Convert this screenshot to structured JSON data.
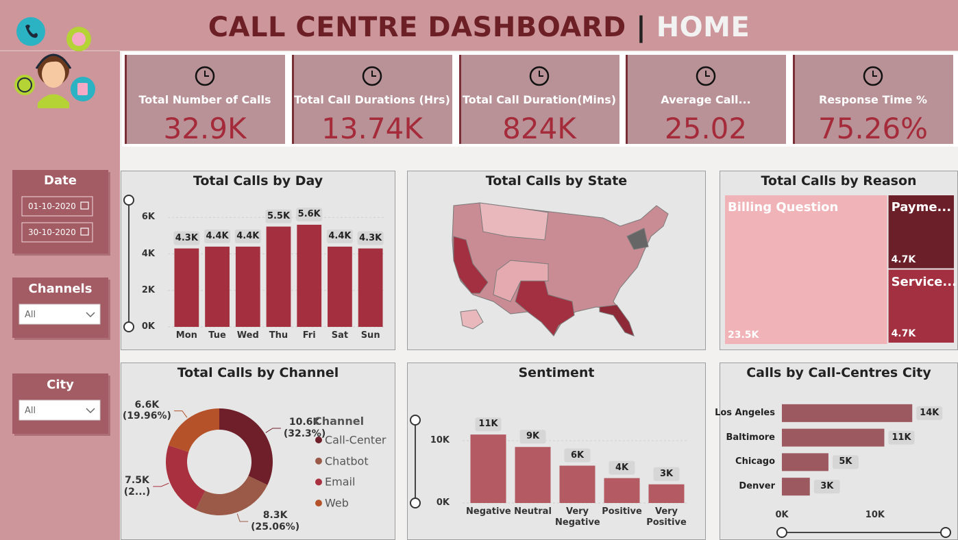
{
  "header": {
    "title": "CALL CENTRE DASHBOARD",
    "separator": "|",
    "page": "HOME"
  },
  "kpis": [
    {
      "label": "Total Number of Calls",
      "value": "32.9K"
    },
    {
      "label": "Total Call Durations (Hrs)",
      "value": "13.74K"
    },
    {
      "label": "Total Call Duration(Mins)",
      "value": "824K"
    },
    {
      "label": "Average Call...",
      "value": "25.02"
    },
    {
      "label": "Response Time %",
      "value": "75.26%"
    }
  ],
  "filters": {
    "date": {
      "title": "Date",
      "from": "01-10-2020",
      "to": "30-10-2020"
    },
    "channels": {
      "title": "Channels",
      "selected": "All"
    },
    "city": {
      "title": "City",
      "selected": "All"
    }
  },
  "chart_data": [
    {
      "type": "bar",
      "title": "Total Calls by Day",
      "categories": [
        "Mon",
        "Tue",
        "Wed",
        "Thu",
        "Fri",
        "Sat",
        "Sun"
      ],
      "values": [
        4300,
        4400,
        4400,
        5500,
        5600,
        4400,
        4300
      ],
      "value_labels": [
        "4.3K",
        "4.4K",
        "4.4K",
        "5.5K",
        "5.6K",
        "4.4K",
        "4.3K"
      ],
      "color": "#a4303f",
      "ylim": [
        0,
        6500
      ],
      "yticks": [
        {
          "value": 0,
          "label": "0K"
        },
        {
          "value": 2000,
          "label": "2K"
        },
        {
          "value": 4000,
          "label": "4K"
        },
        {
          "value": 6000,
          "label": "6K"
        }
      ],
      "grid": true
    },
    {
      "type": "map",
      "title": "Total Calls by State"
    },
    {
      "type": "treemap",
      "title": "Total Calls by Reason",
      "categories": [
        "Billing Question",
        "Payme...",
        "Service..."
      ],
      "values": [
        23500,
        4700,
        4700
      ],
      "value_labels": [
        "23.5K",
        "4.7K",
        "4.7K"
      ],
      "colors": [
        "#efb3b8",
        "#6b1f28",
        "#a33040"
      ]
    },
    {
      "type": "donut",
      "title": "Total Calls by Channel",
      "legend_title": "Channel",
      "categories": [
        "Call-Center",
        "Chatbot",
        "Email",
        "Web"
      ],
      "values": [
        10600,
        8300,
        7500,
        6600
      ],
      "value_labels": [
        "10.6K\n(32.3%)",
        "8.3K\n(25.06%)",
        "7.5K\n(2...)",
        "6.6K\n(19.96%)"
      ],
      "colors": [
        "#6e1f2a",
        "#9b5a48",
        "#a8303f",
        "#b5522a"
      ]
    },
    {
      "type": "bar",
      "title": "Sentiment",
      "categories": [
        "Negative",
        "Neutral",
        "Very Negative",
        "Positive",
        "Very Positive"
      ],
      "values": [
        11000,
        9000,
        6000,
        4000,
        3000
      ],
      "value_labels": [
        "11K",
        "9K",
        "6K",
        "4K",
        "3K"
      ],
      "color": "#b35a63",
      "ylim": [
        0,
        12000
      ],
      "yticks": [
        {
          "value": 0,
          "label": "0K"
        },
        {
          "value": 10000,
          "label": "10K"
        }
      ],
      "grid": true
    },
    {
      "type": "hbar",
      "title": "Calls by Call-Centres City",
      "categories": [
        "Los Angeles",
        "Baltimore",
        "Chicago",
        "Denver"
      ],
      "values": [
        14000,
        11000,
        5000,
        3000
      ],
      "value_labels": [
        "14K",
        "11K",
        "5K",
        "3K"
      ],
      "color": "#9c5a60",
      "xlim": [
        0,
        17000
      ],
      "xticks": [
        {
          "value": 0,
          "label": "0K"
        },
        {
          "value": 10000,
          "label": "10K"
        }
      ],
      "grid": false
    }
  ]
}
